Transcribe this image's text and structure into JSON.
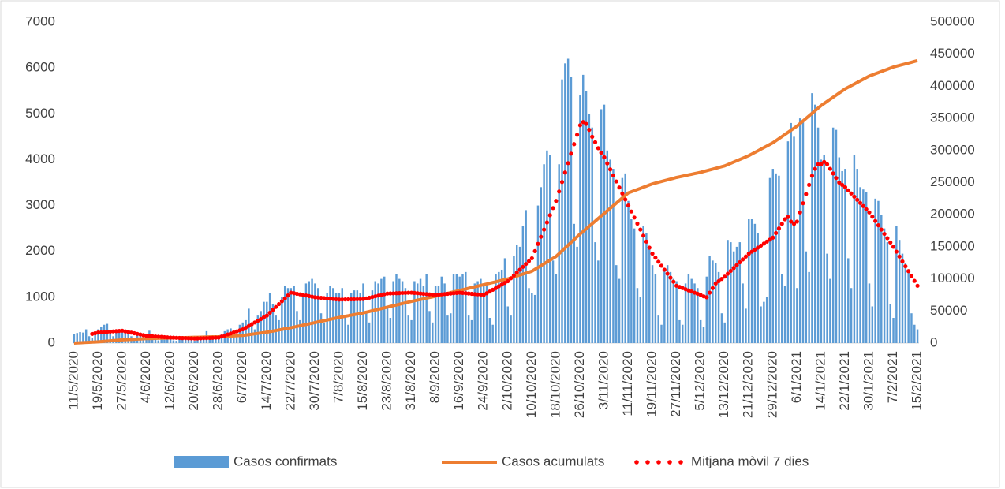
{
  "chart_data": {
    "type": "combo",
    "categories": [
      "11/5/2020",
      null,
      null,
      null,
      null,
      null,
      null,
      null,
      "19/5/2020",
      null,
      null,
      null,
      null,
      null,
      null,
      null,
      "27/5/2020",
      null,
      null,
      null,
      null,
      null,
      null,
      null,
      "4/6/2020",
      null,
      null,
      null,
      null,
      null,
      null,
      null,
      "12/6/2020",
      null,
      null,
      null,
      null,
      null,
      null,
      null,
      "20/6/2020",
      null,
      null,
      null,
      null,
      null,
      null,
      null,
      "28/6/2020",
      null,
      null,
      null,
      null,
      null,
      null,
      null,
      "6/7/2020",
      null,
      null,
      null,
      null,
      null,
      null,
      null,
      "14/7/2020",
      null,
      null,
      null,
      null,
      null,
      null,
      null,
      "22/7/2020",
      null,
      null,
      null,
      null,
      null,
      null,
      null,
      "30/7/2020",
      null,
      null,
      null,
      null,
      null,
      null,
      null,
      "7/8/2020",
      null,
      null,
      null,
      null,
      null,
      null,
      null,
      "15/8/2020",
      null,
      null,
      null,
      null,
      null,
      null,
      null,
      "23/8/2020",
      null,
      null,
      null,
      null,
      null,
      null,
      null,
      "31/8/2020",
      null,
      null,
      null,
      null,
      null,
      null,
      null,
      "8/9/2020",
      null,
      null,
      null,
      null,
      null,
      null,
      null,
      "16/9/2020",
      null,
      null,
      null,
      null,
      null,
      null,
      null,
      "24/9/2020",
      null,
      null,
      null,
      null,
      null,
      null,
      null,
      "2/10/2020",
      null,
      null,
      null,
      null,
      null,
      null,
      null,
      "10/10/2020",
      null,
      null,
      null,
      null,
      null,
      null,
      null,
      "18/10/2020",
      null,
      null,
      null,
      null,
      null,
      null,
      null,
      "26/10/2020",
      null,
      null,
      null,
      null,
      null,
      null,
      null,
      "3/11/2020",
      null,
      null,
      null,
      null,
      null,
      null,
      null,
      "11/11/2020",
      null,
      null,
      null,
      null,
      null,
      null,
      null,
      "19/11/2020",
      null,
      null,
      null,
      null,
      null,
      null,
      null,
      "27/11/2020",
      null,
      null,
      null,
      null,
      null,
      null,
      null,
      "5/12/2020",
      null,
      null,
      null,
      null,
      null,
      null,
      null,
      "13/12/2020",
      null,
      null,
      null,
      null,
      null,
      null,
      null,
      "21/12/2020",
      null,
      null,
      null,
      null,
      null,
      null,
      null,
      "29/12/2020",
      null,
      null,
      null,
      null,
      null,
      null,
      null,
      "6/1/2021",
      null,
      null,
      null,
      null,
      null,
      null,
      null,
      "14/1/2021",
      null,
      null,
      null,
      null,
      null,
      null,
      null,
      "22/1/2021",
      null,
      null,
      null,
      null,
      null,
      null,
      null,
      "30/1/2021",
      null,
      null,
      null,
      null,
      null,
      null,
      null,
      "7/2/2021",
      null,
      null,
      null,
      null,
      null,
      null,
      null,
      "15/2/2021"
    ],
    "series": [
      {
        "name": "Casos confirmats",
        "type": "bar",
        "color": "#5b9bd5",
        "values": [
          200,
          220,
          240,
          230,
          300,
          150,
          120,
          250,
          300,
          350,
          400,
          420,
          250,
          150,
          300,
          280,
          260,
          220,
          200,
          150,
          100,
          180,
          200,
          150,
          180,
          270,
          150,
          90,
          60,
          120,
          130,
          110,
          100,
          60,
          50,
          100,
          120,
          110,
          90,
          60,
          50,
          100,
          120,
          110,
          260,
          100,
          80,
          120,
          80,
          200,
          260,
          300,
          320,
          180,
          150,
          400,
          450,
          500,
          750,
          400,
          300,
          600,
          700,
          900,
          900,
          1100,
          850,
          600,
          500,
          1000,
          1250,
          1200,
          1200,
          1250,
          700,
          500,
          1100,
          1300,
          1350,
          1400,
          1300,
          1200,
          650,
          450,
          1100,
          1250,
          1200,
          1100,
          1100,
          1200,
          600,
          400,
          1100,
          1150,
          1150,
          1100,
          1300,
          700,
          450,
          1150,
          1350,
          1300,
          1400,
          1450,
          800,
          550,
          1350,
          1500,
          1400,
          1350,
          1200,
          600,
          500,
          1350,
          1300,
          1400,
          1250,
          1500,
          700,
          450,
          1250,
          1250,
          1450,
          1300,
          600,
          650,
          1500,
          1500,
          1450,
          1500,
          1550,
          600,
          500,
          1300,
          1350,
          1400,
          1250,
          1300,
          550,
          400,
          1500,
          1550,
          1600,
          1850,
          800,
          600,
          1900,
          2150,
          2100,
          2550,
          2900,
          1200,
          1100,
          1050,
          3000,
          3400,
          3900,
          4200,
          4100,
          1800,
          1500,
          3900,
          5750,
          6100,
          6200,
          5800,
          2600,
          2100,
          5400,
          5850,
          5500,
          5000,
          4700,
          2200,
          1800,
          5100,
          5200,
          4200,
          4000,
          3800,
          1700,
          1400,
          3600,
          3700,
          3100,
          2700,
          2500,
          1200,
          1000,
          2550,
          2400,
          2100,
          1700,
          1500,
          600,
          400,
          1600,
          1700,
          1550,
          1400,
          1350,
          500,
          400,
          1300,
          1500,
          1400,
          1300,
          1200,
          500,
          350,
          1450,
          1900,
          1800,
          1750,
          1550,
          650,
          450,
          2250,
          2200,
          2000,
          2100,
          2200,
          1300,
          750,
          2700,
          2700,
          2600,
          2400,
          800,
          900,
          1000,
          3600,
          3800,
          3700,
          3650,
          1500,
          1250,
          4400,
          4800,
          4500,
          1200,
          4900,
          4850,
          2000,
          1550,
          5450,
          5200,
          4700,
          4000,
          4100,
          1950,
          1400,
          4700,
          4650,
          4050,
          3750,
          3800,
          1850,
          1200,
          4100,
          3800,
          3400,
          3350,
          3300,
          1300,
          800,
          3150,
          3100,
          2800,
          2500,
          2200,
          850,
          550,
          2550,
          2250,
          1950,
          1750,
          1550,
          650,
          400,
          300
        ]
      },
      {
        "name": "Casos acumulats",
        "type": "line",
        "axis": "y2",
        "color": "#ed7d31",
        "values": [
          0,
          250,
          500,
          750,
          1000,
          1250,
          1500,
          1750,
          2000,
          2375,
          2750,
          3125,
          3500,
          3875,
          4250,
          4625,
          5000,
          5250,
          5500,
          5750,
          6000,
          6250,
          6500,
          6750,
          7000,
          7125,
          7250,
          7375,
          7500,
          7625,
          7750,
          7875,
          8000,
          8125,
          8250,
          8375,
          8500,
          8625,
          8750,
          8875,
          9000,
          9125,
          9250,
          9375,
          9500,
          9625,
          9750,
          9875,
          10000,
          10250,
          10500,
          10750,
          11000,
          11250,
          11500,
          11750,
          12000,
          12625,
          13250,
          13875,
          14500,
          15125,
          15750,
          16375,
          17000,
          17875,
          18750,
          19625,
          20500,
          21375,
          22250,
          23125,
          24000,
          25000,
          26000,
          27000,
          28000,
          29000,
          30000,
          31000,
          32000,
          33000,
          34000,
          35000,
          36000,
          37000,
          38000,
          39000,
          40000,
          40875,
          41750,
          42625,
          43500,
          44375,
          45250,
          46125,
          47000,
          48125,
          49250,
          50375,
          51500,
          52625,
          53750,
          54875,
          56000,
          57125,
          58250,
          59375,
          60500,
          61625,
          62750,
          63875,
          65000,
          66000,
          67000,
          68000,
          69000,
          70000,
          71000,
          72000,
          73000,
          74125,
          75250,
          76375,
          77500,
          78625,
          79750,
          80875,
          82000,
          83125,
          84250,
          85375,
          86500,
          87625,
          88750,
          89875,
          91000,
          92125,
          93250,
          94375,
          95500,
          96625,
          97750,
          98875,
          100000,
          101500,
          103000,
          104500,
          106000,
          107500,
          109000,
          110500,
          112000,
          114875,
          117750,
          120625,
          123500,
          126375,
          129250,
          132125,
          135000,
          139375,
          143750,
          148125,
          152500,
          156875,
          161250,
          165625,
          170000,
          174000,
          178000,
          182000,
          186000,
          190000,
          194000,
          198000,
          202000,
          206000,
          210000,
          214000,
          218000,
          222000,
          226000,
          230000,
          234000,
          235750,
          237500,
          239250,
          241000,
          242750,
          244500,
          246250,
          248000,
          249250,
          250500,
          251750,
          253000,
          254250,
          255500,
          256750,
          258000,
          259000,
          260000,
          261000,
          262000,
          263000,
          264000,
          265000,
          266000,
          267250,
          268500,
          269750,
          271000,
          272250,
          273500,
          274750,
          276000,
          278000,
          280000,
          282000,
          284000,
          286000,
          288000,
          290000,
          292000,
          294500,
          297000,
          299500,
          302000,
          304500,
          307000,
          309500,
          312000,
          315250,
          318500,
          321750,
          325000,
          328250,
          331500,
          334750,
          338000,
          342000,
          346000,
          350000,
          354000,
          358000,
          362000,
          366000,
          370000,
          373250,
          376500,
          379750,
          383000,
          386250,
          389500,
          392750,
          396000,
          398500,
          401000,
          403500,
          406000,
          408500,
          411000,
          413500,
          416000,
          417750,
          419500,
          421250,
          423000,
          424750,
          426500,
          428250,
          430000,
          431250,
          432500,
          433750,
          435000,
          436250,
          437500,
          438750,
          440000
        ]
      },
      {
        "name": "Mitjana mòvil 7 dies",
        "type": "dots",
        "color": "#ff0000",
        "values": [
          null,
          null,
          null,
          null,
          null,
          null,
          200,
          215,
          230,
          235,
          240,
          245,
          250,
          255,
          260,
          265,
          270,
          256,
          243,
          229,
          215,
          201,
          188,
          174,
          160,
          155,
          150,
          145,
          140,
          135,
          130,
          125,
          120,
          118,
          115,
          113,
          110,
          108,
          105,
          103,
          100,
          103,
          105,
          108,
          110,
          113,
          115,
          118,
          120,
          143,
          165,
          188,
          210,
          233,
          255,
          278,
          300,
          338,
          375,
          413,
          450,
          488,
          525,
          563,
          600,
          663,
          725,
          788,
          850,
          913,
          975,
          1038,
          1100,
          1088,
          1075,
          1063,
          1050,
          1038,
          1025,
          1013,
          1000,
          994,
          988,
          981,
          975,
          969,
          963,
          956,
          950,
          951,
          953,
          954,
          955,
          956,
          958,
          959,
          960,
          975,
          990,
          1005,
          1020,
          1035,
          1050,
          1065,
          1080,
          1083,
          1085,
          1088,
          1090,
          1093,
          1095,
          1098,
          1100,
          1094,
          1088,
          1081,
          1075,
          1069,
          1063,
          1056,
          1050,
          1056,
          1063,
          1069,
          1075,
          1081,
          1088,
          1094,
          1100,
          1094,
          1088,
          1081,
          1075,
          1069,
          1063,
          1056,
          1050,
          1088,
          1125,
          1163,
          1200,
          1238,
          1275,
          1313,
          1350,
          1413,
          1475,
          1538,
          1600,
          1663,
          1725,
          1788,
          1850,
          2006,
          2163,
          2319,
          2475,
          2631,
          2788,
          2944,
          3100,
          3306,
          3513,
          3719,
          3925,
          4131,
          4338,
          4544,
          4750,
          4820,
          4780,
          4650,
          4500,
          4380,
          4250,
          4150,
          4050,
          3919,
          3788,
          3656,
          3525,
          3394,
          3263,
          3131,
          3000,
          2869,
          2738,
          2606,
          2475,
          2344,
          2213,
          2081,
          1950,
          1863,
          1775,
          1688,
          1600,
          1513,
          1425,
          1338,
          1250,
          1225,
          1200,
          1175,
          1150,
          1125,
          1100,
          1075,
          1050,
          1020,
          1000,
          1100,
          1200,
          1300,
          1350,
          1400,
          1450,
          1513,
          1575,
          1638,
          1700,
          1763,
          1825,
          1888,
          1950,
          1994,
          2038,
          2081,
          2125,
          2169,
          2213,
          2256,
          2300,
          2400,
          2500,
          2600,
          2700,
          2750,
          2650,
          2600,
          2650,
          2850,
          3050,
          3250,
          3450,
          3650,
          3800,
          3900,
          3900,
          3950,
          3900,
          3800,
          3700,
          3600,
          3500,
          3450,
          3400,
          3331,
          3263,
          3194,
          3125,
          3056,
          2988,
          2919,
          2850,
          2756,
          2663,
          2569,
          2475,
          2381,
          2288,
          2194,
          2100,
          1994,
          1888,
          1781,
          1675,
          1569,
          1463,
          1356,
          1250
        ]
      }
    ],
    "ylim": [
      0,
      7000
    ],
    "yticks": [
      0,
      1000,
      2000,
      3000,
      4000,
      5000,
      6000,
      7000
    ],
    "y2lim": [
      0,
      500000
    ],
    "y2ticks": [
      0,
      50000,
      100000,
      150000,
      200000,
      250000,
      300000,
      350000,
      400000,
      450000,
      500000
    ],
    "grid": false,
    "legend": "bottom"
  }
}
